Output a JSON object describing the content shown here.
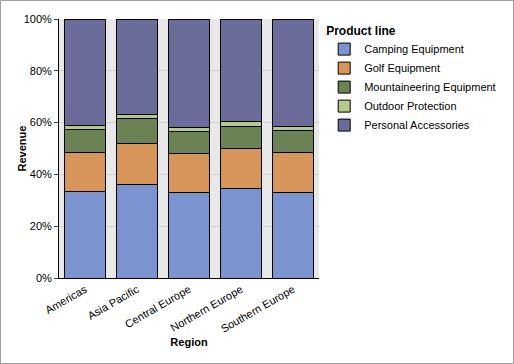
{
  "chart_data": {
    "type": "bar",
    "stacked": true,
    "grid": true,
    "legend": "top-right",
    "legend_title": "Product line",
    "x_label": "Region",
    "y_label": "Revenue",
    "categories": [
      "Americas",
      "Asia Pacific",
      "Central Europe",
      "Northern Europe",
      "Southern Europe"
    ],
    "series": [
      {
        "name": "Camping Equipment",
        "color": "#7b93cf",
        "values": [
          33.5,
          36,
          33,
          34.5,
          33
        ]
      },
      {
        "name": "Golf Equipment",
        "color": "#d8955a",
        "values": [
          15,
          16,
          15,
          15.5,
          15.5
        ]
      },
      {
        "name": "Mountaineering Equipment",
        "color": "#6a8254",
        "values": [
          9,
          9.5,
          8.5,
          8.5,
          8.5
        ]
      },
      {
        "name": "Outdoor Protection",
        "color": "#b4c98a",
        "values": [
          1.5,
          1.5,
          1.5,
          2,
          1.5
        ]
      },
      {
        "name": "Personal Accessories",
        "color": "#6a6d99",
        "values": [
          41,
          37,
          42,
          39.5,
          41.5
        ]
      }
    ],
    "ylim": [
      0,
      100
    ],
    "yticks": [
      {
        "value": 0,
        "label": "0%"
      },
      {
        "value": 20,
        "label": "20%"
      },
      {
        "value": 40,
        "label": "40%"
      },
      {
        "value": 60,
        "label": "60%"
      },
      {
        "value": 80,
        "label": "80%"
      },
      {
        "value": 100,
        "label": "100%"
      }
    ]
  }
}
